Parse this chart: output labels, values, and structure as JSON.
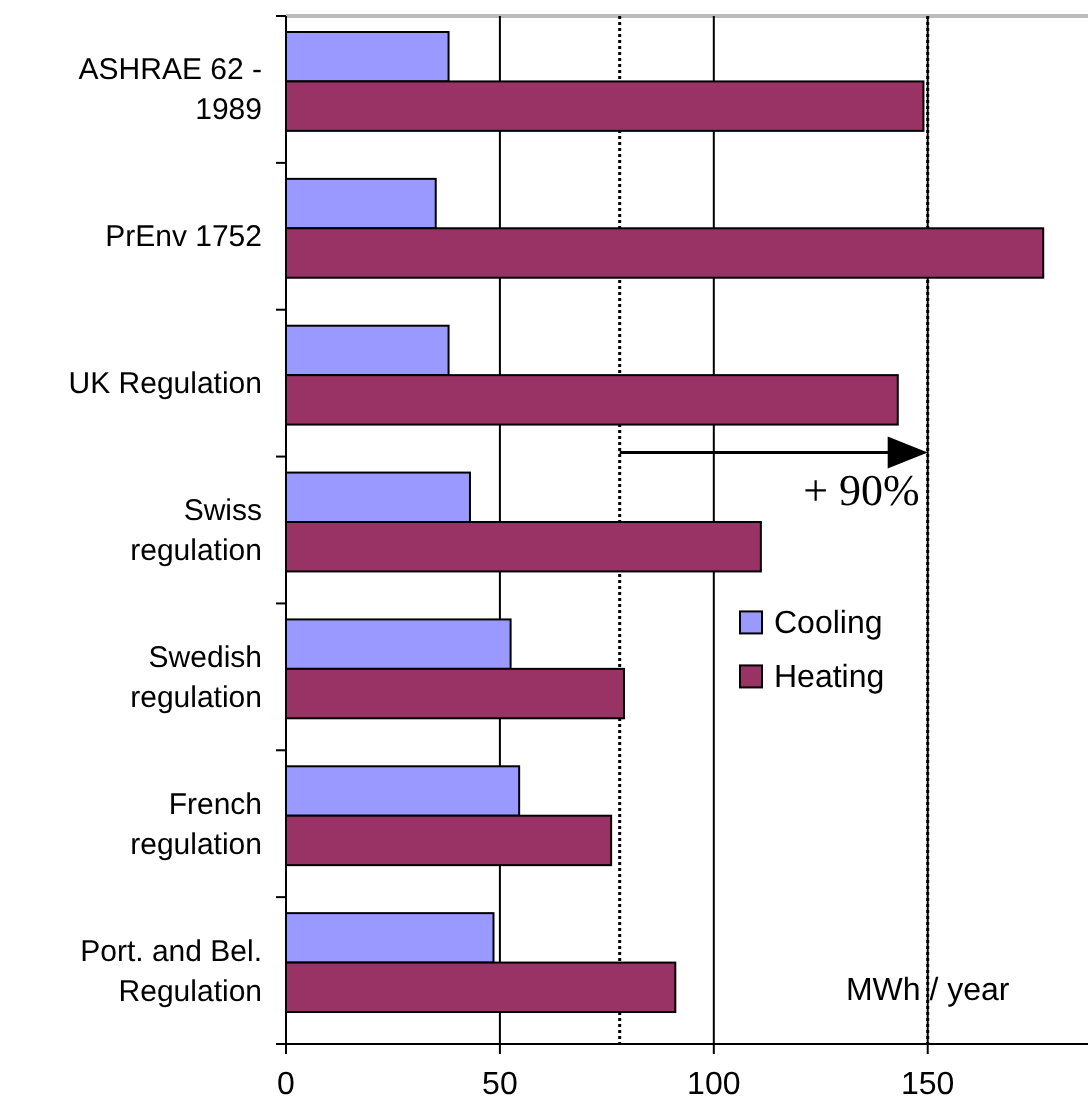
{
  "chart_data": {
    "type": "bar",
    "orientation": "horizontal",
    "xlabel": "MWh / year",
    "categories": [
      "ASHRAE 62 - 1989",
      "PrEnv 1752",
      "UK Regulation",
      "Swiss regulation",
      "Swedish regulation",
      "French regulation",
      "Port. and Bel. Regulation"
    ],
    "series": [
      {
        "name": "Cooling",
        "color": "#9999ff",
        "values": [
          38,
          35,
          38,
          43,
          52.5,
          54.5,
          48.5
        ]
      },
      {
        "name": "Heating",
        "color": "#993366",
        "values": [
          149,
          177,
          143,
          111,
          79,
          76,
          91
        ]
      }
    ],
    "xlim": [
      0,
      187
    ],
    "xticks": [
      0,
      50,
      100,
      150
    ],
    "grid": "x",
    "legend": "right",
    "ref_lines": [
      {
        "axis": "x",
        "value": 78,
        "line_style": "dotted"
      },
      {
        "axis": "x",
        "value": 150,
        "line_style": "dotted"
      }
    ],
    "annotations": [
      {
        "text": "+ 90%",
        "x": 150,
        "y": "Swiss regulation"
      }
    ]
  }
}
